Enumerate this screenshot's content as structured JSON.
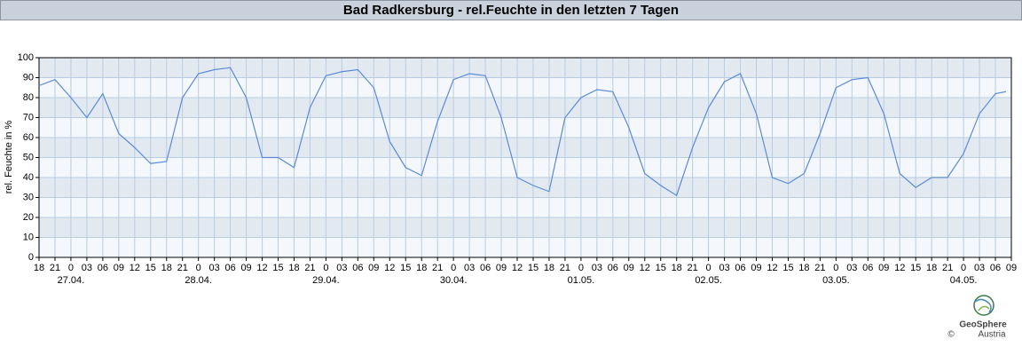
{
  "chart_data": {
    "type": "line",
    "title": "Bad Radkersburg - rel.Feuchte in den letzten 7 Tagen",
    "y_label": "rel. Feuchte in %",
    "logo": {
      "name": "GeoSphere",
      "sub": "Austria",
      "copyright": "©"
    },
    "x": [
      0,
      3,
      6,
      9,
      12,
      15,
      18,
      21,
      24,
      27,
      30,
      33,
      36,
      39,
      42,
      45,
      48,
      51,
      54,
      57,
      60,
      63,
      66,
      69,
      72,
      75,
      78,
      81,
      84,
      87,
      90,
      93,
      96,
      99,
      102,
      105,
      108,
      111,
      114,
      117,
      120,
      123,
      126,
      129,
      132,
      135,
      138,
      141,
      144,
      147,
      150,
      153,
      156,
      159,
      162,
      165,
      168,
      171,
      174,
      177,
      180,
      182
    ],
    "series": [
      {
        "name": "rel.Feuchte",
        "color": "#5b8bd6",
        "values": [
          86,
          89,
          80,
          70,
          82,
          62,
          55,
          47,
          48,
          80,
          92,
          94,
          95,
          80,
          50,
          50,
          45,
          75,
          91,
          93,
          94,
          85,
          58,
          45,
          41,
          68,
          89,
          92,
          91,
          70,
          40,
          36,
          33,
          70,
          80,
          84,
          83,
          65,
          42,
          36,
          31,
          55,
          75,
          88,
          92,
          72,
          40,
          37,
          42,
          62,
          85,
          89,
          90,
          72,
          42,
          35,
          40,
          40,
          52,
          72,
          82,
          83
        ]
      }
    ],
    "xlim": [
      0,
      183
    ],
    "ylim": [
      0,
      100
    ],
    "yticks": [
      0,
      10,
      20,
      30,
      40,
      50,
      60,
      70,
      80,
      90,
      100
    ],
    "xticks": [
      {
        "value": 0,
        "label": "18"
      },
      {
        "value": 3,
        "label": "21"
      },
      {
        "value": 6,
        "label": "0"
      },
      {
        "value": 9,
        "label": "03"
      },
      {
        "value": 12,
        "label": "06"
      },
      {
        "value": 15,
        "label": "09"
      },
      {
        "value": 18,
        "label": "12"
      },
      {
        "value": 21,
        "label": "15"
      },
      {
        "value": 24,
        "label": "18"
      },
      {
        "value": 27,
        "label": "21"
      },
      {
        "value": 30,
        "label": "0"
      },
      {
        "value": 33,
        "label": "03"
      },
      {
        "value": 36,
        "label": "06"
      },
      {
        "value": 39,
        "label": "09"
      },
      {
        "value": 42,
        "label": "12"
      },
      {
        "value": 45,
        "label": "15"
      },
      {
        "value": 48,
        "label": "18"
      },
      {
        "value": 51,
        "label": "21"
      },
      {
        "value": 54,
        "label": "0"
      },
      {
        "value": 57,
        "label": "03"
      },
      {
        "value": 60,
        "label": "06"
      },
      {
        "value": 63,
        "label": "09"
      },
      {
        "value": 66,
        "label": "12"
      },
      {
        "value": 69,
        "label": "15"
      },
      {
        "value": 72,
        "label": "18"
      },
      {
        "value": 75,
        "label": "21"
      },
      {
        "value": 78,
        "label": "0"
      },
      {
        "value": 81,
        "label": "03"
      },
      {
        "value": 84,
        "label": "06"
      },
      {
        "value": 87,
        "label": "09"
      },
      {
        "value": 90,
        "label": "12"
      },
      {
        "value": 93,
        "label": "15"
      },
      {
        "value": 96,
        "label": "18"
      },
      {
        "value": 99,
        "label": "21"
      },
      {
        "value": 102,
        "label": "0"
      },
      {
        "value": 105,
        "label": "03"
      },
      {
        "value": 108,
        "label": "06"
      },
      {
        "value": 111,
        "label": "09"
      },
      {
        "value": 114,
        "label": "12"
      },
      {
        "value": 117,
        "label": "15"
      },
      {
        "value": 120,
        "label": "18"
      },
      {
        "value": 123,
        "label": "21"
      },
      {
        "value": 126,
        "label": "0"
      },
      {
        "value": 129,
        "label": "03"
      },
      {
        "value": 132,
        "label": "06"
      },
      {
        "value": 135,
        "label": "09"
      },
      {
        "value": 138,
        "label": "12"
      },
      {
        "value": 141,
        "label": "15"
      },
      {
        "value": 144,
        "label": "18"
      },
      {
        "value": 147,
        "label": "21"
      },
      {
        "value": 150,
        "label": "0"
      },
      {
        "value": 153,
        "label": "03"
      },
      {
        "value": 156,
        "label": "06"
      },
      {
        "value": 159,
        "label": "09"
      },
      {
        "value": 162,
        "label": "12"
      },
      {
        "value": 165,
        "label": "15"
      },
      {
        "value": 168,
        "label": "18"
      },
      {
        "value": 171,
        "label": "21"
      },
      {
        "value": 174,
        "label": "0"
      },
      {
        "value": 177,
        "label": "03"
      },
      {
        "value": 180,
        "label": "06"
      },
      {
        "value": 183,
        "label": "09"
      }
    ],
    "date_labels": [
      {
        "value": 6,
        "label": "27.04."
      },
      {
        "value": 30,
        "label": "28.04."
      },
      {
        "value": 54,
        "label": "29.04."
      },
      {
        "value": 78,
        "label": "30.04."
      },
      {
        "value": 102,
        "label": "01.05."
      },
      {
        "value": 126,
        "label": "02.05."
      },
      {
        "value": 150,
        "label": "03.05."
      },
      {
        "value": 174,
        "label": "04.05."
      }
    ],
    "grid": true,
    "band_colors": [
      "#f4f7fb",
      "#e3e9f1"
    ]
  }
}
